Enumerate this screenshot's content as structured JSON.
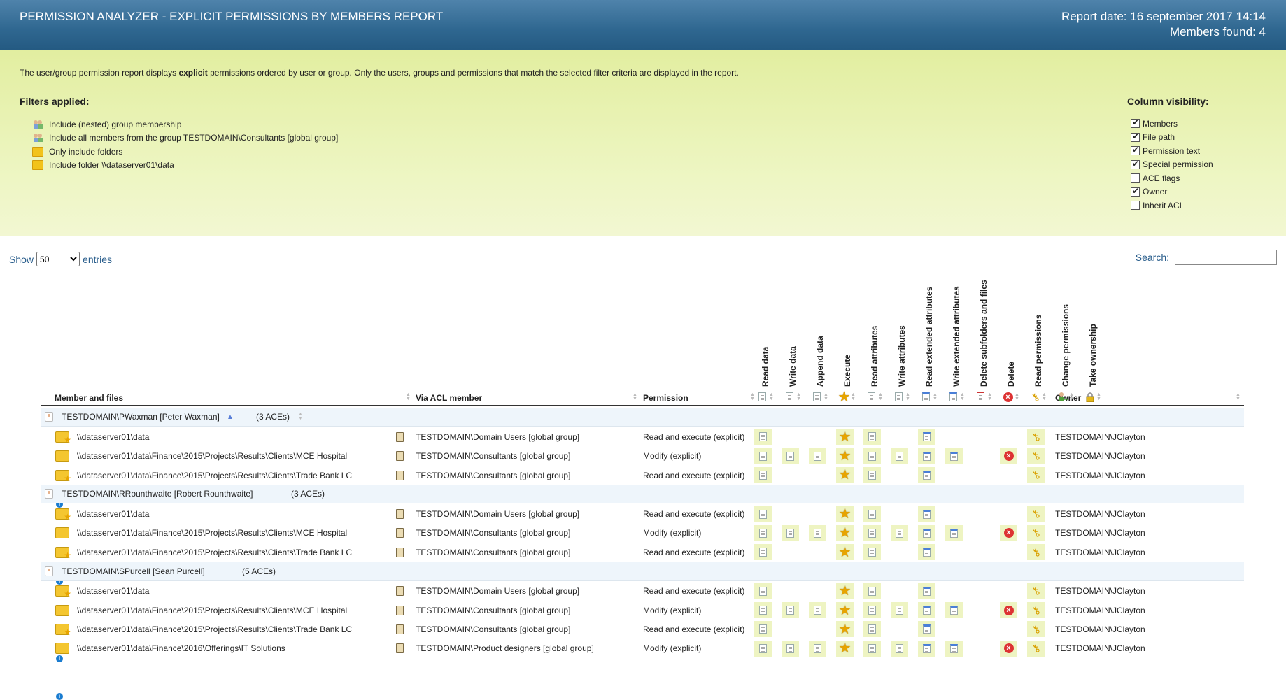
{
  "header": {
    "title": "PERMISSION ANALYZER - EXPLICIT PERMISSIONS BY MEMBERS REPORT",
    "report_date": "Report date: 16 september 2017 14:14",
    "members_found": "Members found: 4"
  },
  "info": {
    "desc_before": "The user/group permission report displays ",
    "desc_bold": "explicit",
    "desc_after": " permissions ordered by user or group. Only the users, groups and permissions that match the selected filter criteria are displayed in the report.",
    "filters_title": "Filters applied:",
    "filters": [
      {
        "icon": "group-membership-icon",
        "label": "Include (nested) group membership"
      },
      {
        "icon": "group-members-icon",
        "label": "Include all members from the group TESTDOMAIN\\Consultants [global group]"
      },
      {
        "icon": "folder-icon",
        "label": "Only include folders"
      },
      {
        "icon": "folder-add-icon",
        "label": "Include folder \\\\dataserver01\\data"
      }
    ],
    "colvis_title": "Column visibility:",
    "columns": [
      {
        "label": "Members",
        "checked": true
      },
      {
        "label": "File path",
        "checked": true
      },
      {
        "label": "Permission text",
        "checked": true
      },
      {
        "label": "Special permission",
        "checked": true
      },
      {
        "label": "ACE flags",
        "checked": false
      },
      {
        "label": "Owner",
        "checked": true
      },
      {
        "label": "Inherit ACL",
        "checked": false
      }
    ]
  },
  "controls": {
    "show_label": "Show",
    "entries_value": "50",
    "entries_label": "entries",
    "search_label": "Search:",
    "search_value": ""
  },
  "table": {
    "headers": {
      "member": "Member and files",
      "via": "Via ACL member",
      "permission": "Permission",
      "owner": "Owner"
    },
    "perm_columns": [
      {
        "label": "Read data",
        "icon": "doc"
      },
      {
        "label": "Write data",
        "icon": "doc-edit"
      },
      {
        "label": "Append data",
        "icon": "doc-add"
      },
      {
        "label": "Execute",
        "icon": "star"
      },
      {
        "label": "Read attributes",
        "icon": "doc-small"
      },
      {
        "label": "Write attributes",
        "icon": "doc-small-edit"
      },
      {
        "label": "Read extended attributes",
        "icon": "doc-blue"
      },
      {
        "label": "Write extended attributes",
        "icon": "doc-blue-edit"
      },
      {
        "label": "Delete subfolders and files",
        "icon": "doc-delete"
      },
      {
        "label": "Delete",
        "icon": "x"
      },
      {
        "label": "Read permissions",
        "icon": "key"
      },
      {
        "label": "Change permissions",
        "icon": "user-add"
      },
      {
        "label": "Take ownership",
        "icon": "lock"
      }
    ],
    "groups": [
      {
        "member": "TESTDOMAIN\\PWaxman [Peter Waxman]",
        "aces": "(3 ACEs)",
        "rows": [
          {
            "path": "\\\\dataserver01\\data",
            "folder_badge": "star",
            "via": "TESTDOMAIN\\Domain Users [global group]",
            "permission": "Read and execute (explicit)",
            "perms": [
              1,
              0,
              0,
              1,
              1,
              0,
              1,
              0,
              0,
              0,
              1,
              0,
              0
            ],
            "owner": "TESTDOMAIN\\JClayton"
          },
          {
            "path": "\\\\dataserver01\\data\\Finance\\2015\\Projects\\Results\\Clients\\MCE Hospital",
            "folder_badge": "info",
            "via": "TESTDOMAIN\\Consultants [global group]",
            "permission": "Modify (explicit)",
            "perms": [
              1,
              1,
              1,
              1,
              1,
              1,
              1,
              1,
              0,
              1,
              1,
              0,
              0
            ],
            "owner": "TESTDOMAIN\\JClayton"
          },
          {
            "path": "\\\\dataserver01\\data\\Finance\\2015\\Projects\\Results\\Clients\\Trade Bank LC",
            "folder_badge": "star",
            "via": "TESTDOMAIN\\Consultants [global group]",
            "permission": "Read and execute (explicit)",
            "perms": [
              1,
              0,
              0,
              1,
              1,
              0,
              1,
              0,
              0,
              0,
              1,
              0,
              0
            ],
            "owner": "TESTDOMAIN\\JClayton"
          }
        ]
      },
      {
        "member": "TESTDOMAIN\\RRounthwaite [Robert Rounthwaite]",
        "aces": "(3 ACEs)",
        "rows": [
          {
            "path": "\\\\dataserver01\\data",
            "folder_badge": "star",
            "via": "TESTDOMAIN\\Domain Users [global group]",
            "permission": "Read and execute (explicit)",
            "perms": [
              1,
              0,
              0,
              1,
              1,
              0,
              1,
              0,
              0,
              0,
              1,
              0,
              0
            ],
            "owner": "TESTDOMAIN\\JClayton"
          },
          {
            "path": "\\\\dataserver01\\data\\Finance\\2015\\Projects\\Results\\Clients\\MCE Hospital",
            "folder_badge": "info",
            "via": "TESTDOMAIN\\Consultants [global group]",
            "permission": "Modify (explicit)",
            "perms": [
              1,
              1,
              1,
              1,
              1,
              1,
              1,
              1,
              0,
              1,
              1,
              0,
              0
            ],
            "owner": "TESTDOMAIN\\JClayton"
          },
          {
            "path": "\\\\dataserver01\\data\\Finance\\2015\\Projects\\Results\\Clients\\Trade Bank LC",
            "folder_badge": "star",
            "via": "TESTDOMAIN\\Consultants [global group]",
            "permission": "Read and execute (explicit)",
            "perms": [
              1,
              0,
              0,
              1,
              1,
              0,
              1,
              0,
              0,
              0,
              1,
              0,
              0
            ],
            "owner": "TESTDOMAIN\\JClayton"
          }
        ]
      },
      {
        "member": "TESTDOMAIN\\SPurcell [Sean Purcell]",
        "aces": "(5 ACEs)",
        "rows": [
          {
            "path": "\\\\dataserver01\\data",
            "folder_badge": "star",
            "via": "TESTDOMAIN\\Domain Users [global group]",
            "permission": "Read and execute (explicit)",
            "perms": [
              1,
              0,
              0,
              1,
              1,
              0,
              1,
              0,
              0,
              0,
              1,
              0,
              0
            ],
            "owner": "TESTDOMAIN\\JClayton"
          },
          {
            "path": "\\\\dataserver01\\data\\Finance\\2015\\Projects\\Results\\Clients\\MCE Hospital",
            "folder_badge": "info",
            "via": "TESTDOMAIN\\Consultants [global group]",
            "permission": "Modify (explicit)",
            "perms": [
              1,
              1,
              1,
              1,
              1,
              1,
              1,
              1,
              0,
              1,
              1,
              0,
              0
            ],
            "owner": "TESTDOMAIN\\JClayton"
          },
          {
            "path": "\\\\dataserver01\\data\\Finance\\2015\\Projects\\Results\\Clients\\Trade Bank LC",
            "folder_badge": "star",
            "via": "TESTDOMAIN\\Consultants [global group]",
            "permission": "Read and execute (explicit)",
            "perms": [
              1,
              0,
              0,
              1,
              1,
              0,
              1,
              0,
              0,
              0,
              1,
              0,
              0
            ],
            "owner": "TESTDOMAIN\\JClayton"
          },
          {
            "path": "\\\\dataserver01\\data\\Finance\\2016\\Offerings\\IT Solutions",
            "folder_badge": "info",
            "via": "TESTDOMAIN\\Product designers [global group]",
            "permission": "Modify (explicit)",
            "perms": [
              1,
              1,
              1,
              1,
              1,
              1,
              1,
              1,
              0,
              1,
              1,
              0,
              0
            ],
            "owner": "TESTDOMAIN\\JClayton"
          }
        ]
      }
    ]
  }
}
